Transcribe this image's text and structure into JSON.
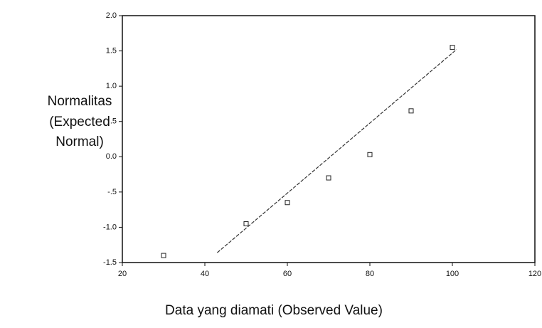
{
  "chart_data": {
    "type": "scatter",
    "xlabel": "Data yang diamati (Observed Value)",
    "ylabel": [
      "Normalitas",
      "(Expected",
      "Normal)"
    ],
    "x": [
      30,
      50,
      60,
      70,
      80,
      90,
      100
    ],
    "values": [
      -1.4,
      -0.95,
      -0.65,
      -0.3,
      0.03,
      0.65,
      1.55
    ],
    "color": "#222222",
    "reference_line": {
      "x": [
        43,
        101
      ],
      "values": [
        -1.36,
        1.52
      ],
      "color": "#333333"
    },
    "xlim": [
      20,
      120
    ],
    "xticks": [
      20,
      40,
      60,
      80,
      100,
      120
    ],
    "ylim": [
      -1.5,
      2.0
    ],
    "yticks": [
      {
        "value": -1.5,
        "label": "-1.5"
      },
      {
        "value": -1,
        "label": "-1.0"
      },
      {
        "value": -0.5,
        "label": "-.5"
      },
      {
        "value": 0,
        "label": "0.0"
      },
      {
        "value": 0.5,
        "label": ".5"
      },
      {
        "value": 1,
        "label": "1.0"
      },
      {
        "value": 1.5,
        "label": "1.5"
      },
      {
        "value": 2,
        "label": "2.0"
      }
    ],
    "grid": false
  }
}
